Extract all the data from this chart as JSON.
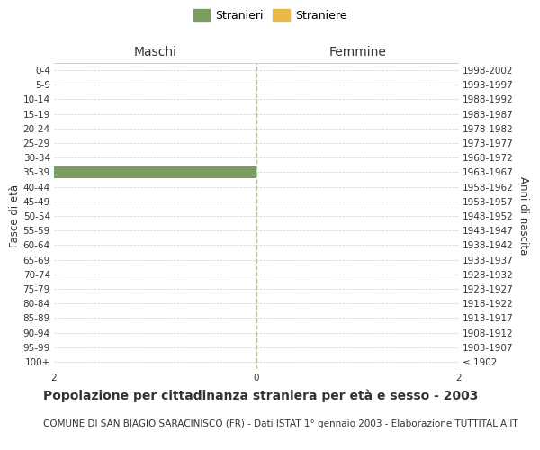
{
  "age_groups": [
    "100+",
    "95-99",
    "90-94",
    "85-89",
    "80-84",
    "75-79",
    "70-74",
    "65-69",
    "60-64",
    "55-59",
    "50-54",
    "45-49",
    "40-44",
    "35-39",
    "30-34",
    "25-29",
    "20-24",
    "15-19",
    "10-14",
    "5-9",
    "0-4"
  ],
  "birth_years": [
    "≤ 1902",
    "1903-1907",
    "1908-1912",
    "1913-1917",
    "1918-1922",
    "1923-1927",
    "1928-1932",
    "1933-1937",
    "1938-1942",
    "1943-1947",
    "1948-1952",
    "1953-1957",
    "1958-1962",
    "1963-1967",
    "1968-1972",
    "1973-1977",
    "1978-1982",
    "1983-1987",
    "1988-1992",
    "1993-1997",
    "1998-2002"
  ],
  "males_stranieri": [
    0,
    0,
    0,
    0,
    0,
    0,
    0,
    0,
    0,
    0,
    0,
    0,
    0,
    2,
    0,
    0,
    0,
    0,
    0,
    0,
    0
  ],
  "females_straniere": [
    0,
    0,
    0,
    0,
    0,
    0,
    0,
    0,
    0,
    0,
    0,
    0,
    0,
    0,
    0,
    0,
    0,
    0,
    0,
    0,
    0
  ],
  "male_color": "#7a9e60",
  "female_color": "#e8b84b",
  "xlim": [
    -2,
    2
  ],
  "xlabel_ticks": [
    -2,
    0,
    2
  ],
  "title": "Popolazione per cittadinanza straniera per età e sesso - 2003",
  "subtitle": "COMUNE DI SAN BIAGIO SARACINISCO (FR) - Dati ISTAT 1° gennaio 2003 - Elaborazione TUTTITALIA.IT",
  "ylabel_left": "Fasce di età",
  "ylabel_right": "Anni di nascita",
  "header_left": "Maschi",
  "header_right": "Femmine",
  "legend_stranieri": "Stranieri",
  "legend_straniere": "Straniere",
  "bar_height": 0.8,
  "background_color": "#ffffff",
  "grid_color": "#cccccc",
  "center_line_color": "#c8c870",
  "border_color": "#cccccc",
  "text_color": "#333333",
  "title_fontsize": 10,
  "subtitle_fontsize": 7.5,
  "tick_fontsize": 7.5,
  "label_fontsize": 8.5,
  "header_fontsize": 10
}
